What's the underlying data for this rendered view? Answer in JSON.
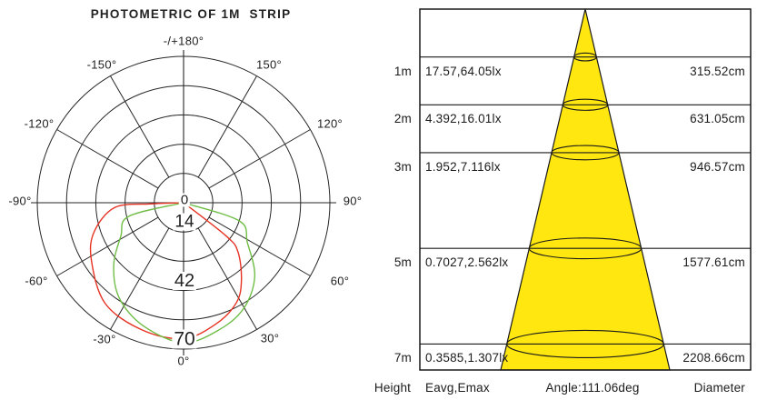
{
  "chart_data": [
    {
      "type": "line",
      "subtype": "polar-photometric-curve",
      "title": "PHOTOMETRIC OF 1M  STRIP",
      "grid": true,
      "legend": "none",
      "angle_ticks_deg": [
        -180,
        -150,
        -120,
        -90,
        -60,
        -30,
        0,
        30,
        60,
        90,
        120,
        150
      ],
      "angle_tick_labels": [
        "-/+180°",
        "-150°",
        "-120°",
        "-90°",
        "-60°",
        "-30°",
        "0°",
        "30°",
        "60°",
        "90°",
        "120°",
        "150°"
      ],
      "radial_range": [
        0,
        70
      ],
      "radial_gridlines": [
        14,
        28,
        42,
        56,
        70
      ],
      "radial_axis_labels": [
        "0",
        "14",
        "42",
        "70"
      ],
      "radial_axis_label_values": [
        0,
        14,
        42,
        70
      ],
      "series": [
        {
          "name": "red-curve",
          "color": "#e63323",
          "points_deg_value": [
            [
              -90,
              0
            ],
            [
              -88,
              16
            ],
            [
              -86,
              33
            ],
            [
              -72,
              45
            ],
            [
              -58,
              52
            ],
            [
              -38,
              61
            ],
            [
              -18,
              64
            ],
            [
              0,
              65
            ],
            [
              15,
              60
            ],
            [
              28,
              54
            ],
            [
              37,
              46
            ],
            [
              48,
              35
            ],
            [
              52,
              26
            ],
            [
              90,
              0
            ]
          ]
        },
        {
          "name": "green-curve",
          "color": "#6fbd45",
          "points_deg_value": [
            [
              -90,
              0
            ],
            [
              -76,
              27
            ],
            [
              -62,
              34
            ],
            [
              -48,
              45
            ],
            [
              -34,
              55
            ],
            [
              -18,
              62
            ],
            [
              0,
              67
            ],
            [
              16,
              63
            ],
            [
              30,
              58
            ],
            [
              44,
              49
            ],
            [
              58,
              36
            ],
            [
              72,
              28
            ],
            [
              90,
              0
            ]
          ]
        }
      ]
    },
    {
      "type": "table",
      "subtype": "beam-cone-diagram",
      "beam_angle_deg": 111.06,
      "cone_color": "#ffe70f",
      "columns": [
        "Height",
        "Eavg,Emax",
        "Diameter"
      ],
      "rows": [
        {
          "height": "1m",
          "height_m": 1,
          "eavg_emax": "17.57,64.05lx",
          "diameter": "315.52cm",
          "diameter_cm": 315.52
        },
        {
          "height": "2m",
          "height_m": 2,
          "eavg_emax": "4.392,16.01lx",
          "diameter": "631.05cm",
          "diameter_cm": 631.05
        },
        {
          "height": "3m",
          "height_m": 3,
          "eavg_emax": "1.952,7.116lx",
          "diameter": "946.57cm",
          "diameter_cm": 946.57
        },
        {
          "height": "5m",
          "height_m": 5,
          "eavg_emax": "0.7027,2.562lx",
          "diameter": "1577.61cm",
          "diameter_cm": 1577.61
        },
        {
          "height": "7m",
          "height_m": 7,
          "eavg_emax": "0.3585,1.307lx",
          "diameter": "2208.66cm",
          "diameter_cm": 2208.66
        }
      ],
      "footer": {
        "height": "Height",
        "eavg_emax": "Eavg,Emax",
        "angle": "Angle:111.06deg",
        "diameter": "Diameter"
      }
    }
  ]
}
